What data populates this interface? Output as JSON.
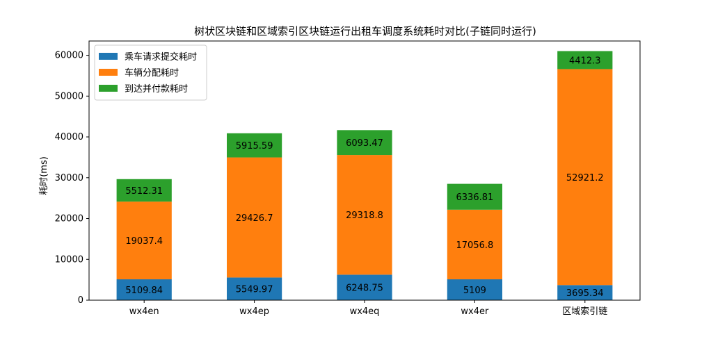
{
  "chart_data": {
    "type": "bar",
    "stacked": true,
    "title": "树状区块链和区域索引区块链运行出租车调度系统耗时对比(子链同时运行)",
    "xlabel": "",
    "ylabel": "耗时(ms)",
    "ylim": [
      0,
      63500
    ],
    "yticks": [
      0,
      10000,
      20000,
      30000,
      40000,
      50000,
      60000
    ],
    "grid": false,
    "legend_position": "top-left",
    "categories": [
      "wx4en",
      "wx4ep",
      "wx4eq",
      "wx4er",
      "区域索引链"
    ],
    "series": [
      {
        "name": "乘车请求提交耗时",
        "color": "#1f77b4",
        "values": [
          5109.84,
          5549.97,
          6248.75,
          5109,
          3695.34
        ],
        "labels": [
          "5109.84",
          "5549.97",
          "6248.75",
          "5109",
          "3695.34"
        ]
      },
      {
        "name": "车辆分配耗时",
        "color": "#ff7f0e",
        "values": [
          19037.4,
          29426.7,
          29318.8,
          17056.8,
          52921.2
        ],
        "labels": [
          "19037.4",
          "29426.7",
          "29318.8",
          "17056.8",
          "52921.2"
        ]
      },
      {
        "name": "到达并付款耗时",
        "color": "#2ca02c",
        "values": [
          5512.31,
          5915.59,
          6093.47,
          6336.81,
          4412.3
        ],
        "labels": [
          "5512.31",
          "5915.59",
          "6093.47",
          "6336.81",
          "4412.3"
        ]
      }
    ]
  }
}
